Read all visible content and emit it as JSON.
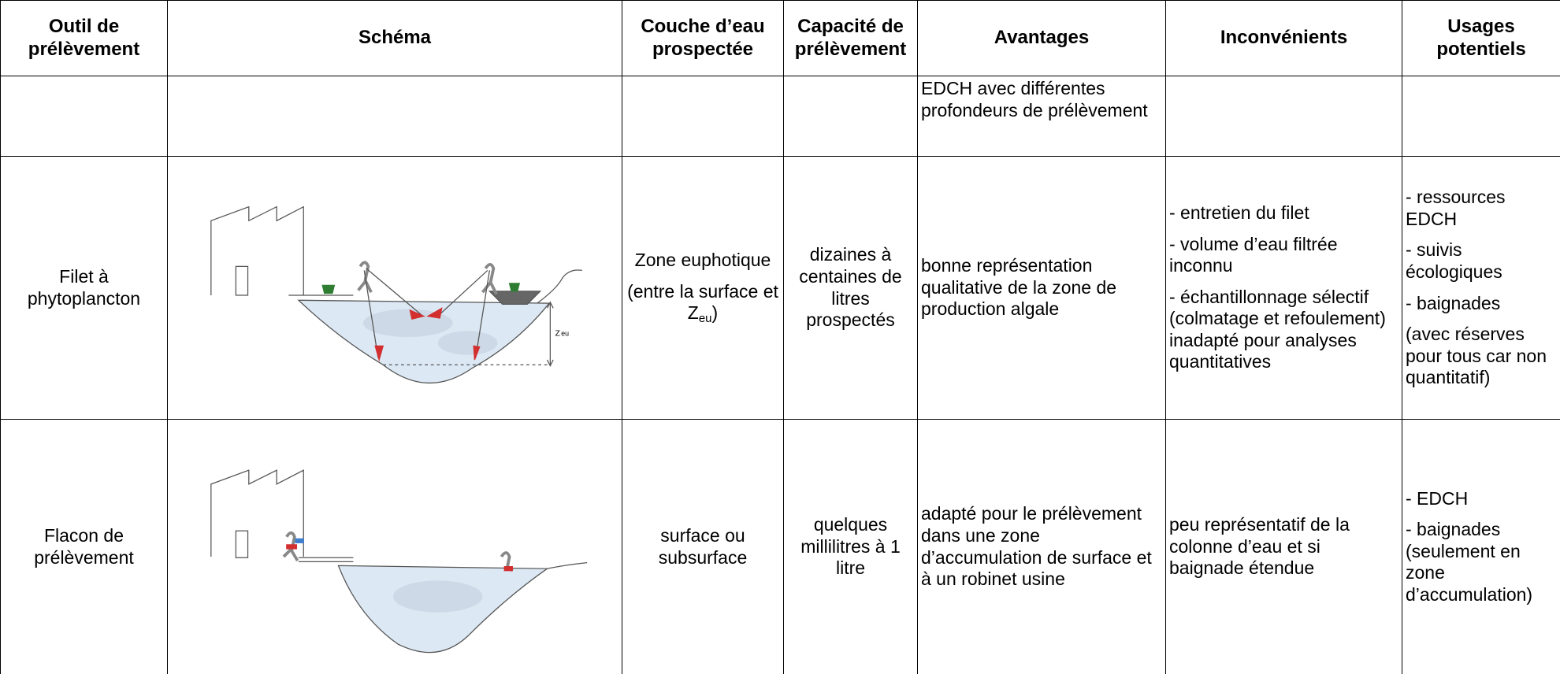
{
  "table": {
    "header": [
      "Outil de prélèvement",
      "Schéma",
      "Couche d’eau prospectée",
      "Capacité de prélèvement",
      "Avantages",
      "Inconvénients",
      "Usages potentiels"
    ],
    "rows": [
      {
        "avantages": [
          "EDCH avec différentes profondeurs de prélèvement"
        ]
      },
      {
        "outil": [
          "Filet à phytoplancton"
        ],
        "schema": {
          "label": "Z",
          "label_sub": "eu"
        },
        "couche": [
          "Zone euphotique",
          [
            "(entre la surface et Z",
            {
              "sub": "eu"
            },
            ")"
          ]
        ],
        "capacite": [
          "dizaines à centaines de litres prospectés"
        ],
        "avantages": [
          "bonne représentation qualitative de la zone de production algale"
        ],
        "inconvenients": [
          "- entretien du filet",
          "- volume d’eau filtrée inconnu",
          "- échantillonnage sélectif (colmatage et refoulement) inadapté pour analyses quantitatives"
        ],
        "usages": [
          "- ressources EDCH",
          "- suivis écologiques",
          "- baignades",
          "(avec réserves pour tous car non quantitatif)"
        ]
      },
      {
        "outil": [
          "Flacon de prélèvement"
        ],
        "couche": [
          "surface ou subsurface"
        ],
        "capacite": [
          "quelques millilitres à 1 litre"
        ],
        "avantages": [
          "adapté pour le prélèvement dans une zone d’accumulation de surface et à un robinet usine"
        ],
        "inconvenients": [
          "peu représentatif de la colonne d’eau et si baignade étendue"
        ],
        "usages": [
          "- EDCH",
          "- baignades (seulement en zone d’accumulation)"
        ]
      }
    ]
  }
}
